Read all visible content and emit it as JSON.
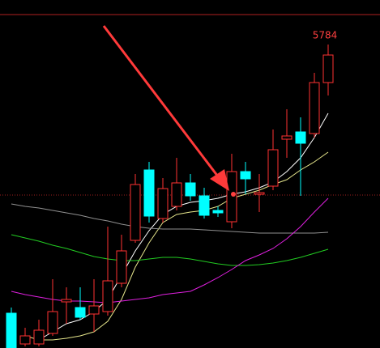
{
  "chart_data": {
    "type": "candlestick",
    "annotation": "5784",
    "categories": [
      null,
      null,
      null,
      null,
      null,
      null,
      null,
      null,
      null,
      null,
      null,
      null,
      null,
      null,
      null,
      null,
      null,
      null,
      null,
      null,
      null,
      null,
      null,
      null
    ],
    "open": [
      5120,
      5044,
      5044,
      5070,
      5148,
      5134,
      5118,
      5124,
      5194,
      5300,
      5474,
      5354,
      5384,
      5442,
      5410,
      5374,
      5346,
      5470,
      5414,
      5434,
      5550,
      5568,
      5564,
      5690
    ],
    "close": [
      5034,
      5064,
      5078,
      5124,
      5154,
      5110,
      5138,
      5200,
      5274,
      5438,
      5360,
      5428,
      5442,
      5410,
      5362,
      5368,
      5470,
      5452,
      5418,
      5524,
      5558,
      5540,
      5690,
      5758
    ],
    "high": [
      5134,
      5084,
      5104,
      5204,
      5184,
      5184,
      5204,
      5334,
      5314,
      5464,
      5494,
      5454,
      5504,
      5464,
      5430,
      5384,
      5514,
      5494,
      5464,
      5574,
      5624,
      5604,
      5714,
      5784
    ],
    "low": [
      5034,
      5038,
      5038,
      5064,
      5094,
      5104,
      5074,
      5114,
      5184,
      5294,
      5344,
      5344,
      5374,
      5398,
      5354,
      5358,
      5330,
      5414,
      5370,
      5424,
      5504,
      5410,
      5554,
      5658
    ],
    "up_color": "#ff3232",
    "down_color": "#00ffff",
    "lines": [
      {
        "color": "#ffffff",
        "values": [
          null,
          null,
          5054,
          5074,
          5094,
          5104,
          5124,
          5154,
          5214,
          5274,
          5324,
          5364,
          5384,
          5394,
          5398,
          5404,
          5414,
          5420,
          5430,
          5444,
          5470,
          5504,
          5554,
          5614
        ]
      },
      {
        "color": "#e6e68c",
        "values": [
          null,
          5064,
          5054,
          5054,
          5058,
          5064,
          5074,
          5100,
          5154,
          5234,
          5294,
          5344,
          5364,
          5370,
          5374,
          5384,
          5404,
          5414,
          5424,
          5438,
          5450,
          5474,
          5494,
          5518
        ]
      },
      {
        "color": "#909090",
        "values": [
          5390,
          5384,
          5380,
          5374,
          5368,
          5362,
          5354,
          5348,
          5340,
          5334,
          5330,
          5328,
          5328,
          5328,
          5326,
          5324,
          5322,
          5320,
          5318,
          5318,
          5318,
          5318,
          5318,
          5320
        ]
      },
      {
        "color": "#22cc22",
        "values": [
          5314,
          5306,
          5298,
          5288,
          5280,
          5270,
          5260,
          5254,
          5250,
          5250,
          5254,
          5258,
          5258,
          5254,
          5248,
          5242,
          5238,
          5238,
          5240,
          5244,
          5250,
          5258,
          5268,
          5278
        ]
      },
      {
        "color": "#e020e0",
        "values": [
          5174,
          5166,
          5160,
          5154,
          5150,
          5150,
          5148,
          5146,
          5150,
          5154,
          5158,
          5166,
          5170,
          5174,
          5190,
          5208,
          5228,
          5250,
          5264,
          5280,
          5304,
          5334,
          5370,
          5404
        ]
      }
    ],
    "ylim": [
      5034,
      5894
    ]
  }
}
